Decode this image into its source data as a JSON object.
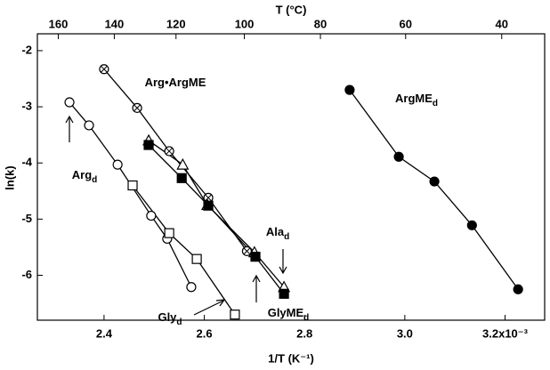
{
  "chart_data": {
    "type": "scatter",
    "x2label": "T (°C)",
    "xlabel": "1/T (K⁻¹)",
    "ylabel": "ln(k)",
    "xlim": [
      2.267,
      3.279
    ],
    "ylim": [
      -6.8,
      -1.7
    ],
    "xticks": [
      2.4,
      2.6,
      2.8,
      {
        "value": 3.0,
        "label": "3.0"
      },
      {
        "value": 3.2,
        "label": "3.2x10⁻³"
      }
    ],
    "yticks": [
      -2,
      -3,
      -4,
      -5,
      -6
    ],
    "x2ticks": [
      160,
      140,
      120,
      100,
      80,
      60,
      40
    ],
    "series": [
      {
        "name": "Arg•ArgME",
        "marker": "circle-cross",
        "color": "#000000",
        "x": [
          2.4,
          2.466,
          2.53,
          2.608,
          2.685
        ],
        "values": [
          -2.33,
          -3.02,
          -3.79,
          -4.62,
          -5.57
        ]
      },
      {
        "name": "Ala",
        "name_sub": "d",
        "marker": "triangle",
        "color": "#000000",
        "x": [
          2.489,
          2.557,
          2.606,
          2.7,
          2.759
        ],
        "values": [
          -3.6,
          -4.03,
          -4.75,
          -5.59,
          -6.21
        ]
      },
      {
        "name": "GlyME",
        "name_sub": "d",
        "marker": "square-filled",
        "color": "#000000",
        "x": [
          2.489,
          2.555,
          2.608,
          2.702,
          2.759
        ],
        "values": [
          -3.68,
          -4.27,
          -4.76,
          -5.67,
          -6.33
        ]
      },
      {
        "name": "Arg",
        "name_sub": "d",
        "marker": "circle",
        "color": "#000000",
        "x": [
          2.331,
          2.37,
          2.427,
          2.494,
          2.526,
          2.574
        ],
        "values": [
          -2.92,
          -3.33,
          -4.03,
          -4.94,
          -5.35,
          -6.21
        ]
      },
      {
        "name": "Gly",
        "name_sub": "d",
        "marker": "square",
        "color": "#000000",
        "x": [
          2.457,
          2.53,
          2.585,
          2.661
        ],
        "values": [
          -4.4,
          -5.25,
          -5.71,
          -6.7
        ]
      },
      {
        "name": "ArgME",
        "name_sub": "d",
        "marker": "circle-filled",
        "color": "#000000",
        "x": [
          2.89,
          2.988,
          3.059,
          3.134,
          3.226
        ],
        "values": [
          -2.7,
          -3.89,
          -4.33,
          -5.11,
          -6.25
        ]
      }
    ]
  }
}
